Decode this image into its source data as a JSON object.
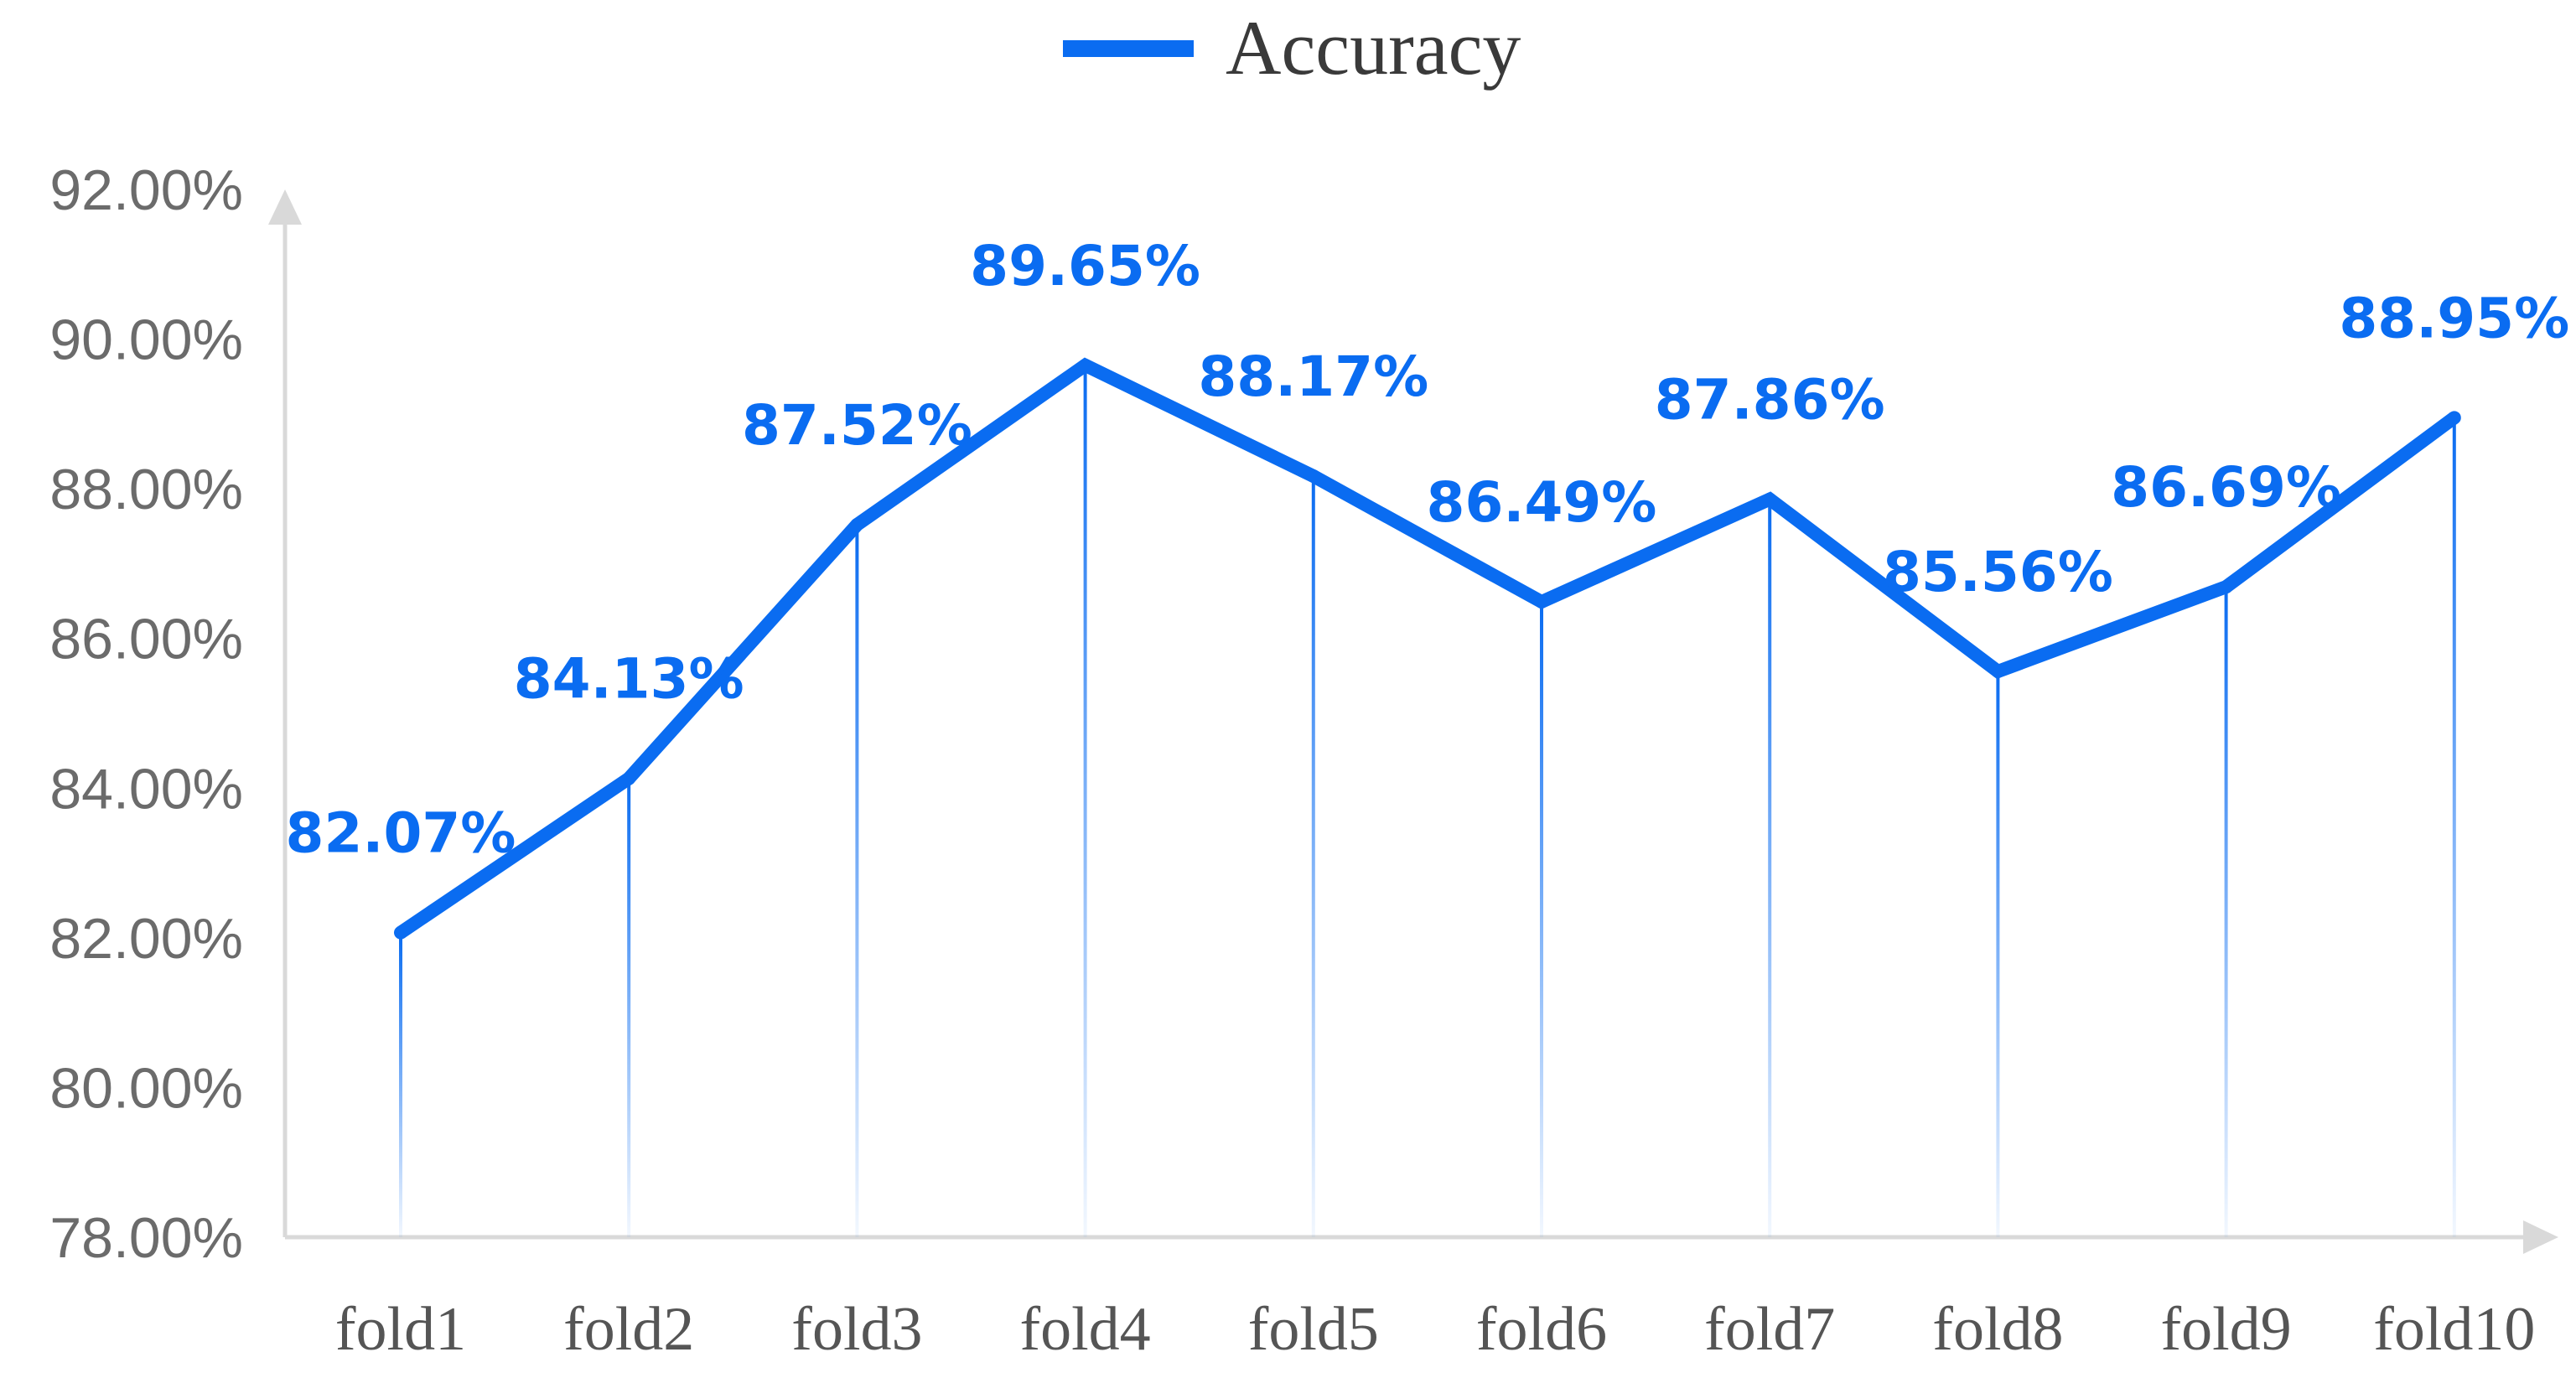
{
  "chart_data": {
    "type": "line",
    "title": "",
    "xlabel": "",
    "ylabel": "",
    "categories": [
      "fold1",
      "fold2",
      "fold3",
      "fold4",
      "fold5",
      "fold6",
      "fold7",
      "fold8",
      "fold9",
      "fold10"
    ],
    "series": [
      {
        "name": "Accuracy",
        "values": [
          82.07,
          84.13,
          87.52,
          89.65,
          88.17,
          86.49,
          87.86,
          85.56,
          86.69,
          88.95
        ],
        "labels": [
          "82.07%",
          "84.13%",
          "87.52%",
          "89.65%",
          "88.17%",
          "86.49%",
          "87.86%",
          "85.56%",
          "86.69%",
          "88.95%"
        ],
        "color": "#0a6cf1"
      }
    ],
    "ylim": [
      78,
      92
    ],
    "yticks": [
      78,
      80,
      82,
      84,
      86,
      88,
      90,
      92
    ],
    "ytick_labels": [
      "78.00%",
      "80.00%",
      "82.00%",
      "84.00%",
      "86.00%",
      "88.00%",
      "90.00%",
      "92.00%"
    ],
    "legend_position": "top-center",
    "drop_lines": true,
    "grid": false,
    "axis_color": "#d9d9d9"
  }
}
